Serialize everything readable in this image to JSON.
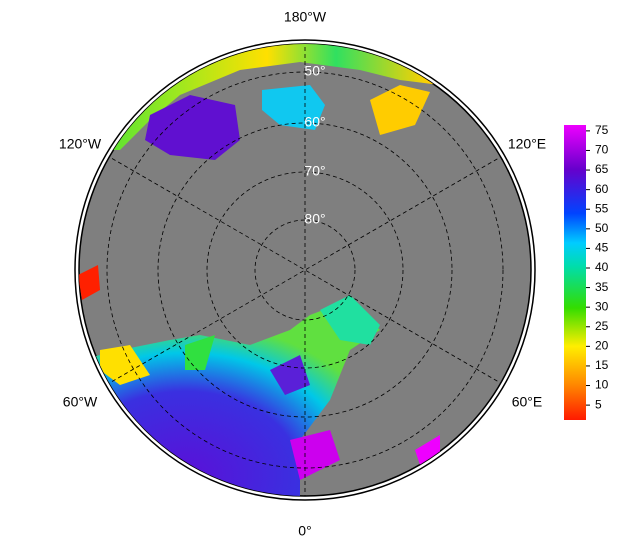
{
  "longitude_labels": [
    "180°W",
    "120°W",
    "120°E",
    "60°W",
    "60°E",
    "0°"
  ],
  "latitude_labels": [
    "50°",
    "60°",
    "70°",
    "80°"
  ],
  "colorbar": {
    "lim": [
      1.2,
      76.5
    ],
    "ticks": [
      5,
      10,
      15,
      20,
      25,
      30,
      35,
      40,
      45,
      50,
      55,
      60,
      65,
      70,
      75
    ]
  }
}
